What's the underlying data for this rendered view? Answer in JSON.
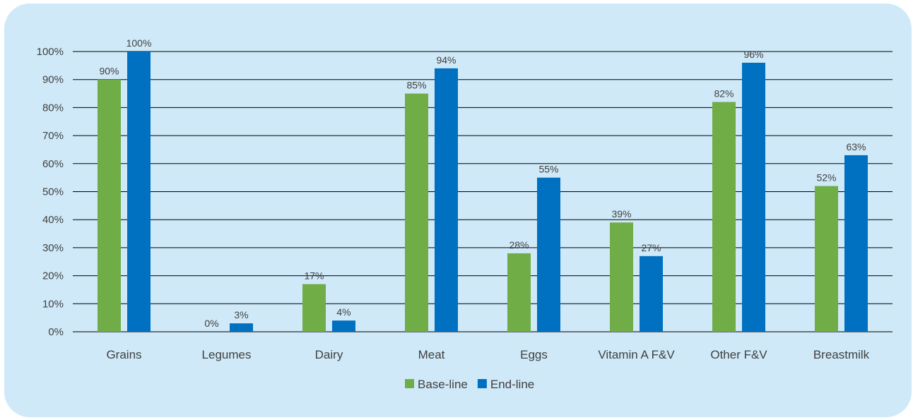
{
  "chart_data": {
    "type": "bar",
    "categories": [
      "Grains",
      "Legumes",
      "Dairy",
      "Meat",
      "Eggs",
      "Vitamin A F&V",
      "Other F&V",
      "Breastmilk"
    ],
    "series": [
      {
        "name": "Base-line",
        "color": "#70ad47",
        "values": [
          90,
          0,
          17,
          85,
          28,
          39,
          82,
          52
        ]
      },
      {
        "name": "End-line",
        "color": "#0070c0",
        "values": [
          100,
          3,
          4,
          94,
          55,
          27,
          96,
          63
        ]
      }
    ],
    "ylim": [
      0,
      100
    ],
    "yticks": [
      0,
      10,
      20,
      30,
      40,
      50,
      60,
      70,
      80,
      90,
      100
    ],
    "value_suffix": "%",
    "grid": true,
    "legend": "bottom-center"
  }
}
